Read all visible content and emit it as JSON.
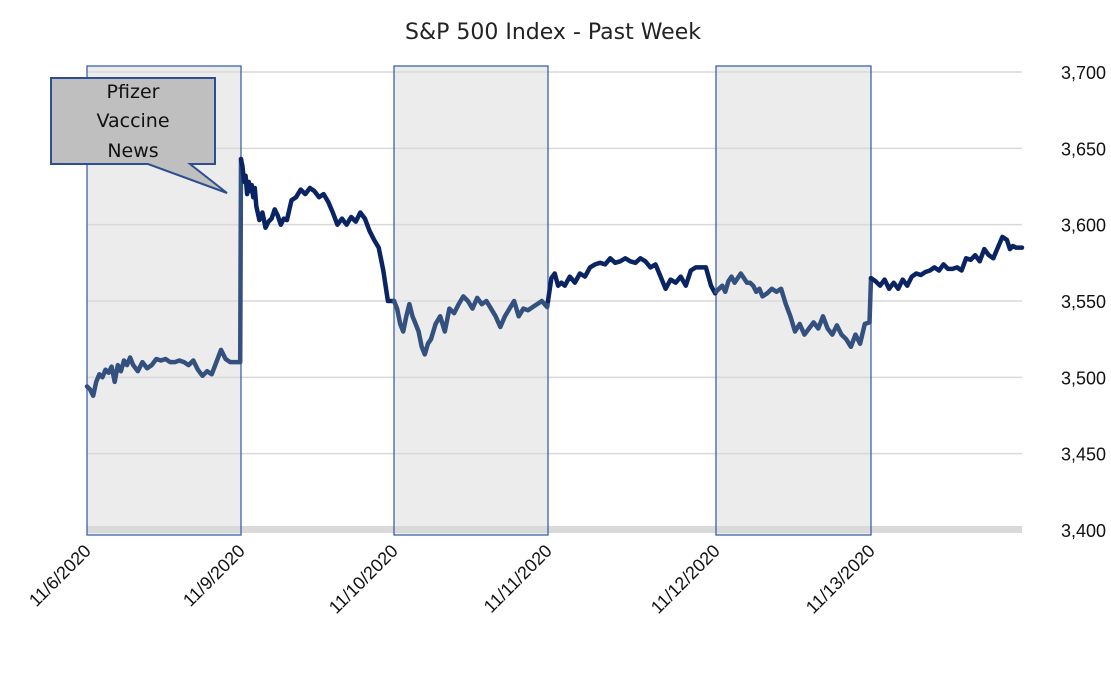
{
  "chart_data": {
    "type": "line",
    "title": "S&P 500 Index - Past Week",
    "xlabel": "",
    "ylabel": "",
    "ylim": [
      3400,
      3700
    ],
    "yaxis_position": "right",
    "yticks": [
      3400,
      3450,
      3500,
      3550,
      3600,
      3650,
      3700
    ],
    "ytick_labels": [
      "3,400",
      "3,450",
      "3,500",
      "3,550",
      "3,600",
      "3,650",
      "3,700"
    ],
    "xlim": [
      0,
      6
    ],
    "xticks": [
      0,
      1,
      2,
      3,
      4,
      5
    ],
    "xtick_labels": [
      "11/6/2020",
      "11/9/2020",
      "11/10/2020",
      "11/11/2020",
      "11/12/2020",
      "11/13/2020"
    ],
    "grid": true,
    "shaded_periods": [
      [
        0,
        1
      ],
      [
        2,
        3
      ],
      [
        4,
        5
      ]
    ],
    "annotation": {
      "lines": [
        "Pfizer",
        "Vaccine",
        "News"
      ],
      "points_to_x": 1.0,
      "points_to_value": 3645
    },
    "colors": {
      "line_primary": "#0a2463",
      "line_shaded": "#34507f",
      "shade_fill": "#ececec",
      "shade_border": "#2e56a0",
      "grid": "#d9d9d9",
      "baseline": "#d9d9d9",
      "callout_fill": "#bfbfbf",
      "callout_border": "#2e4f8f"
    },
    "series": [
      {
        "name": "S&P 500",
        "x": [
          0.0,
          0.02,
          0.04,
          0.06,
          0.08,
          0.1,
          0.12,
          0.14,
          0.16,
          0.18,
          0.2,
          0.22,
          0.24,
          0.26,
          0.28,
          0.3,
          0.33,
          0.36,
          0.39,
          0.42,
          0.45,
          0.48,
          0.51,
          0.54,
          0.57,
          0.6,
          0.63,
          0.66,
          0.69,
          0.72,
          0.75,
          0.78,
          0.81,
          0.84,
          0.87,
          0.9,
          0.93,
          0.96,
          0.995,
          1.0,
          1.01,
          1.02,
          1.03,
          1.04,
          1.05,
          1.06,
          1.07,
          1.08,
          1.09,
          1.1,
          1.12,
          1.14,
          1.16,
          1.18,
          1.2,
          1.22,
          1.24,
          1.26,
          1.28,
          1.3,
          1.33,
          1.36,
          1.39,
          1.42,
          1.45,
          1.48,
          1.51,
          1.54,
          1.57,
          1.6,
          1.63,
          1.66,
          1.69,
          1.72,
          1.75,
          1.78,
          1.81,
          1.84,
          1.87,
          1.9,
          1.93,
          1.96,
          1.99,
          2.0,
          2.02,
          2.04,
          2.06,
          2.08,
          2.1,
          2.12,
          2.14,
          2.16,
          2.18,
          2.2,
          2.22,
          2.24,
          2.27,
          2.3,
          2.33,
          2.36,
          2.39,
          2.42,
          2.45,
          2.48,
          2.51,
          2.54,
          2.57,
          2.6,
          2.63,
          2.66,
          2.69,
          2.72,
          2.75,
          2.78,
          2.81,
          2.84,
          2.87,
          2.9,
          2.93,
          2.96,
          2.995,
          3.0,
          3.02,
          3.04,
          3.06,
          3.08,
          3.1,
          3.13,
          3.16,
          3.19,
          3.22,
          3.25,
          3.28,
          3.31,
          3.34,
          3.37,
          3.4,
          3.43,
          3.46,
          3.49,
          3.52,
          3.55,
          3.58,
          3.61,
          3.64,
          3.67,
          3.7,
          3.73,
          3.76,
          3.79,
          3.82,
          3.85,
          3.88,
          3.91,
          3.94,
          3.97,
          3.995,
          4.0,
          4.02,
          4.04,
          4.06,
          4.08,
          4.1,
          4.12,
          4.14,
          4.16,
          4.18,
          4.2,
          4.22,
          4.24,
          4.26,
          4.28,
          4.3,
          4.33,
          4.36,
          4.39,
          4.42,
          4.45,
          4.48,
          4.51,
          4.54,
          4.57,
          4.6,
          4.63,
          4.66,
          4.69,
          4.72,
          4.75,
          4.78,
          4.81,
          4.84,
          4.87,
          4.9,
          4.93,
          4.96,
          4.99,
          5.0,
          5.03,
          5.06,
          5.09,
          5.12,
          5.15,
          5.18,
          5.21,
          5.24,
          5.27,
          5.3,
          5.33,
          5.36,
          5.39,
          5.42,
          5.45,
          5.48,
          5.51,
          5.54,
          5.57,
          5.6,
          5.63,
          5.66,
          5.69,
          5.72,
          5.75,
          5.78,
          5.81,
          5.84,
          5.87,
          5.9,
          5.92,
          5.94,
          5.96,
          5.98,
          6.0
        ],
        "values": [
          3494,
          3492,
          3488,
          3497,
          3502,
          3500,
          3505,
          3503,
          3507,
          3497,
          3508,
          3504,
          3511,
          3508,
          3513,
          3508,
          3504,
          3510,
          3506,
          3508,
          3512,
          3511,
          3512,
          3510,
          3510,
          3511,
          3510,
          3508,
          3511,
          3505,
          3501,
          3504,
          3502,
          3510,
          3518,
          3512,
          3510,
          3510,
          3510,
          3643,
          3638,
          3628,
          3632,
          3620,
          3628,
          3622,
          3626,
          3618,
          3624,
          3612,
          3603,
          3608,
          3598,
          3602,
          3604,
          3610,
          3606,
          3600,
          3604,
          3603,
          3616,
          3618,
          3623,
          3620,
          3624,
          3622,
          3618,
          3620,
          3615,
          3608,
          3600,
          3604,
          3600,
          3605,
          3602,
          3608,
          3604,
          3596,
          3590,
          3585,
          3570,
          3550,
          3550,
          3550,
          3545,
          3535,
          3530,
          3540,
          3548,
          3540,
          3535,
          3530,
          3520,
          3515,
          3522,
          3525,
          3535,
          3540,
          3530,
          3545,
          3542,
          3548,
          3553,
          3550,
          3545,
          3552,
          3548,
          3550,
          3545,
          3540,
          3533,
          3540,
          3545,
          3550,
          3540,
          3545,
          3544,
          3546,
          3548,
          3550,
          3546,
          3550,
          3565,
          3568,
          3560,
          3562,
          3560,
          3566,
          3562,
          3568,
          3566,
          3572,
          3574,
          3575,
          3574,
          3578,
          3575,
          3576,
          3578,
          3576,
          3575,
          3578,
          3576,
          3572,
          3574,
          3566,
          3558,
          3564,
          3562,
          3566,
          3560,
          3570,
          3572,
          3572,
          3572,
          3560,
          3555,
          3556,
          3558,
          3560,
          3556,
          3563,
          3566,
          3562,
          3565,
          3568,
          3565,
          3562,
          3562,
          3560,
          3556,
          3558,
          3553,
          3555,
          3558,
          3556,
          3558,
          3548,
          3540,
          3530,
          3535,
          3528,
          3532,
          3536,
          3532,
          3540,
          3532,
          3528,
          3534,
          3528,
          3525,
          3520,
          3528,
          3522,
          3535,
          3536,
          3565,
          3563,
          3560,
          3564,
          3558,
          3562,
          3558,
          3564,
          3560,
          3566,
          3568,
          3567,
          3569,
          3570,
          3572,
          3570,
          3574,
          3571,
          3571,
          3572,
          3570,
          3578,
          3577,
          3580,
          3576,
          3584,
          3580,
          3578,
          3585,
          3592,
          3590,
          3584,
          3586,
          3585,
          3585,
          3585
        ]
      }
    ]
  }
}
